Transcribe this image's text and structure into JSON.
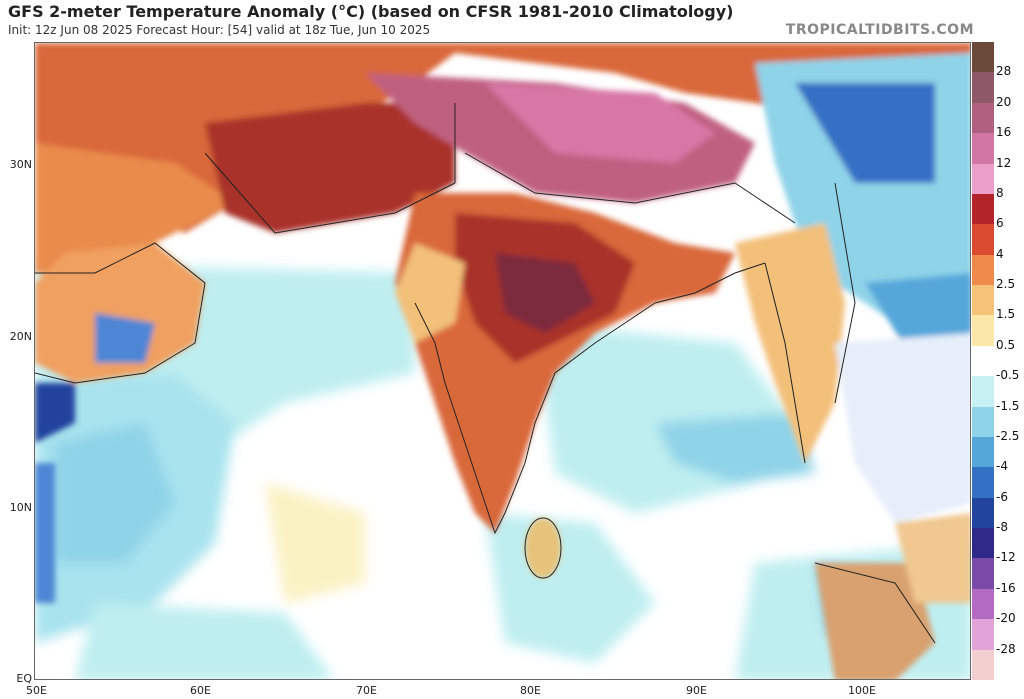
{
  "header": {
    "title": "GFS 2-meter Temperature Anomaly (°C) (based on CFSR 1981-2010 Climatology)",
    "subtitle": "Init: 12z Jun 08 2025   Forecast Hour: [54]   valid at 18z Tue, Jun 10 2025",
    "brand": "TROPICALTIDBITS.COM"
  },
  "axes": {
    "lat_labels": [
      "30N",
      "20N",
      "10N",
      "EQ"
    ],
    "lon_labels": [
      "50E",
      "60E",
      "70E",
      "80E",
      "90E",
      "100E"
    ]
  },
  "colorbar": {
    "labels": [
      "28",
      "20",
      "16",
      "12",
      "8",
      "6",
      "4",
      "2.5",
      "1.5",
      "0.5",
      "-0.5",
      "-1.5",
      "-2.5",
      "-4",
      "-6",
      "-8",
      "-12",
      "-16",
      "-20",
      "-28"
    ],
    "colors": [
      "#6b4a3c",
      "#8e5866",
      "#b0607e",
      "#d277a4",
      "#ea9fcb",
      "#b2232a",
      "#d94a2e",
      "#ee8a4c",
      "#f6c27a",
      "#fbe8a8",
      "#ffffff",
      "#c6f0f2",
      "#8fd3e8",
      "#55a6d9",
      "#3470c4",
      "#22439e",
      "#2f2a8a",
      "#7a4aa8",
      "#b36ac2",
      "#e2a4d8",
      "#f4cfd0"
    ]
  },
  "map": {
    "colors": {
      "ocean_neutral": "#ffffff",
      "ocean_cool": "#bfeef0",
      "land_warm": "#e07a3a",
      "land_hot": "#a9322b",
      "land_very_hot": "#7c2a3c",
      "highland": "#c06080",
      "cool_patch": "#4e86d4",
      "border": "#222222"
    }
  }
}
